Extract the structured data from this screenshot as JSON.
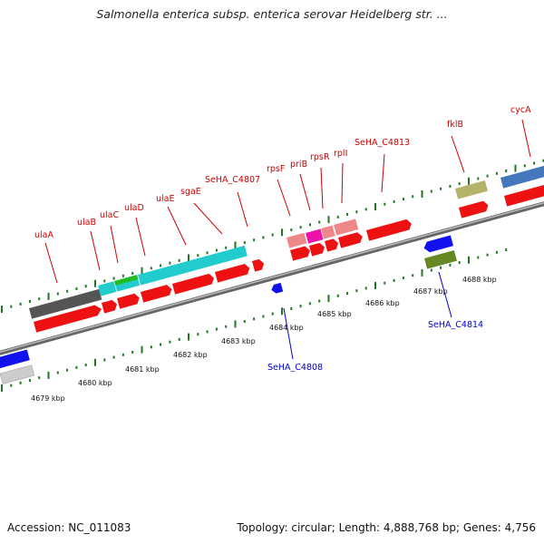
{
  "title": "Salmonella enterica subsp. enterica serovar Heidelberg str. ...",
  "accession": "Accession: NC_011083",
  "topology": "Topology: circular; Length: 4,888,768 bp; Genes: 4,756",
  "scale_labels": [
    "4679 kbp",
    "4680 kbp",
    "4681 kbp",
    "4682 kbp",
    "4683 kbp",
    "4684 kbp",
    "4685 kbp",
    "4686 kbp",
    "4687 kbp",
    "4688 kbp"
  ],
  "forward_gene_labels": [
    "ulaA",
    "ulaB",
    "ulaC",
    "ulaD",
    "ulaE",
    "sgaE",
    "SeHA_C4807",
    "rpsF",
    "priB",
    "rpsR",
    "rplI",
    "SeHA_C4813",
    "fklB",
    "cycA"
  ],
  "reverse_gene_labels": [
    "SeHA_C4808",
    "SeHA_C4814"
  ],
  "colors": {
    "cds": "#ee1111",
    "gene_cyan": "#22cccc",
    "gene_dark": "#555555",
    "gene_green": "#22bb22",
    "gene_pink": "#ee8888",
    "gene_magenta": "#ee11aa",
    "gene_khaki": "#b5b36a",
    "gene_steelblue": "#4477bb",
    "gene_olive": "#668822",
    "gene_blue": "#1111ee",
    "tick_green": "#227722",
    "label_red": "#cc0000",
    "label_blue": "#0000cc"
  }
}
